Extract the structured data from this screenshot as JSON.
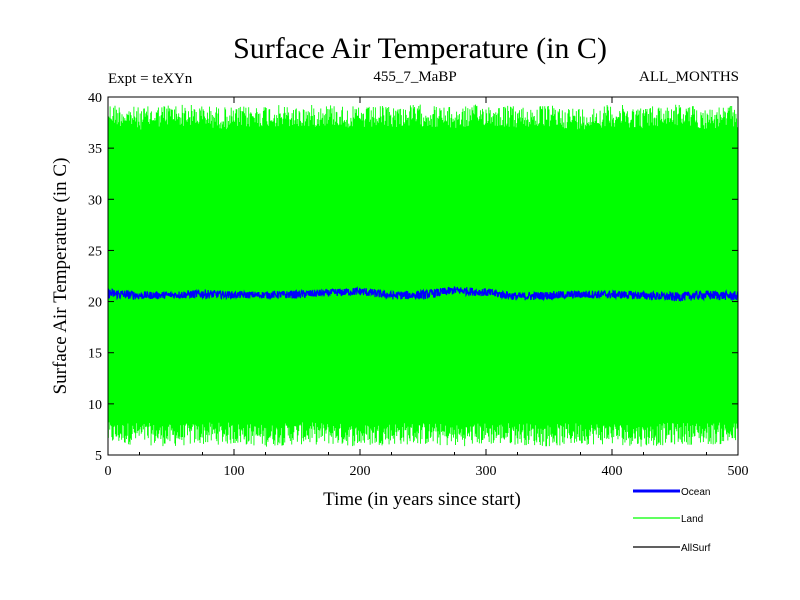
{
  "chart_data": {
    "type": "line",
    "title": "Surface Air Temperature (in C)",
    "subtitle_left": "Expt = teXYn",
    "subtitle_center": "455_7_MaBP",
    "subtitle_right": "ALL_MONTHS",
    "xlabel": "Time (in years since start)",
    "ylabel": "Surface Air Temperature (in C)",
    "xlim": [
      0,
      500
    ],
    "ylim": [
      5,
      40
    ],
    "xticks": [
      0,
      100,
      200,
      300,
      400,
      500
    ],
    "yticks": [
      5,
      10,
      15,
      20,
      25,
      30,
      35,
      40
    ],
    "grid": false,
    "legend_position": "bottom-right",
    "series": [
      {
        "name": "Ocean",
        "color": "#0000ff",
        "description_level": "monthly values fluctuating in a narrow band",
        "x": [
          0,
          25,
          50,
          75,
          100,
          125,
          150,
          175,
          200,
          225,
          250,
          275,
          300,
          325,
          350,
          375,
          400,
          425,
          450,
          475,
          500
        ],
        "y_min": [
          20.3,
          20.2,
          20.3,
          20.3,
          20.3,
          20.3,
          20.3,
          20.5,
          20.6,
          20.2,
          20.2,
          20.7,
          20.5,
          20.1,
          20.2,
          20.3,
          20.3,
          20.2,
          20.0,
          20.2,
          20.1
        ],
        "y_max": [
          21.3,
          21.0,
          21.0,
          21.2,
          21.0,
          21.0,
          21.1,
          21.2,
          21.4,
          21.0,
          21.1,
          21.5,
          21.3,
          20.9,
          21.0,
          21.1,
          21.1,
          21.0,
          20.9,
          21.1,
          21.0
        ]
      },
      {
        "name": "Land",
        "color": "#00ff00",
        "description_level": "monthly values with strong seasonal cycle",
        "x": [
          0,
          25,
          50,
          75,
          100,
          125,
          150,
          175,
          200,
          225,
          250,
          275,
          300,
          325,
          350,
          375,
          400,
          425,
          450,
          475,
          500
        ],
        "y_min": [
          6.0,
          6.0,
          5.8,
          6.0,
          6.0,
          5.8,
          6.0,
          6.0,
          5.8,
          6.0,
          6.0,
          5.8,
          6.0,
          6.0,
          5.8,
          6.0,
          6.0,
          5.8,
          6.0,
          6.0,
          6.0
        ],
        "y_max": [
          39.5,
          39.0,
          39.4,
          39.2,
          39.0,
          39.3,
          39.1,
          39.4,
          39.0,
          39.2,
          39.3,
          39.0,
          39.4,
          39.1,
          39.2,
          39.0,
          39.3,
          39.1,
          39.4,
          39.0,
          39.2
        ]
      },
      {
        "name": "AllSurf",
        "color": "#000000",
        "x": [],
        "y": []
      }
    ]
  }
}
